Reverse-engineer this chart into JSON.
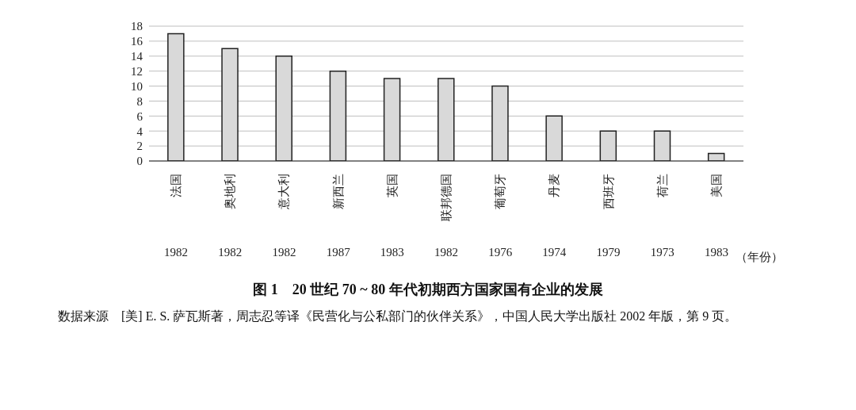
{
  "chart_data": {
    "type": "bar",
    "title": "图 1　20 世纪 70 ~ 80 年代初期西方国家国有企业的发展",
    "categories": [
      "法国",
      "奥地利",
      "意大利",
      "新西兰",
      "英国",
      "联邦德国",
      "葡萄牙",
      "丹麦",
      "西班牙",
      "荷兰",
      "美国"
    ],
    "values": [
      17,
      15,
      14,
      12,
      11,
      11,
      10,
      6,
      4,
      4,
      1
    ],
    "color": "#d9d9d9",
    "ylim": [
      0,
      18
    ],
    "yticks": [
      0,
      2,
      4,
      6,
      8,
      10,
      12,
      14,
      16,
      18
    ],
    "grid": "y",
    "annotations": [
      "1982",
      "1982",
      "1982",
      "1987",
      "1983",
      "1982",
      "1976",
      "1974",
      "1979",
      "1973",
      "1983",
      "（年份）",
      "数据来源　[美] E. S. 萨瓦斯著，周志忍等译《民营化与公私部门的伙伴关系》，中国人民大学出版社 2002 年版，第 9 页。"
    ]
  }
}
